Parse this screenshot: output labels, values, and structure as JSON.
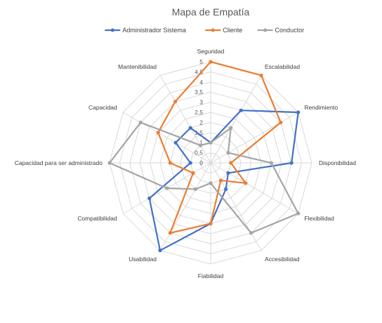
{
  "chart_data": {
    "type": "radar",
    "title": "Mapa de Empatía",
    "legend_position": "top",
    "grid": true,
    "rlim": [
      0,
      5
    ],
    "ticks": [
      "0",
      "0,5",
      "1",
      "1,5",
      "2",
      "2,5",
      "3",
      "3,5",
      "4",
      "4,5",
      "5"
    ],
    "tick_values": [
      0,
      0.5,
      1,
      1.5,
      2,
      2.5,
      3,
      3.5,
      4,
      4.5,
      5
    ],
    "categories": [
      "Seguridad",
      "Escalabilidad",
      "Rendimiento",
      "Disponibilidad",
      "Flexibilidad",
      "Accesibilidad",
      "Fiabilidad",
      "Usabilidad",
      "Compatibilidad",
      "Capacidad para ser administrado",
      "Capacidad",
      "Mantenibilidad"
    ],
    "series": [
      {
        "name": "Administrador Sistema",
        "color": "#4472c4",
        "values": [
          1,
          3,
          5,
          4,
          1,
          1.5,
          3,
          5,
          3.5,
          1,
          2,
          2
        ]
      },
      {
        "name": "Cliente",
        "color": "#ed7d31",
        "values": [
          5,
          5,
          4,
          1,
          2,
          1,
          3,
          4,
          1,
          2,
          3,
          3.5
        ]
      },
      {
        "name": "Conductor",
        "color": "#a5a5a5",
        "values": [
          1,
          2,
          1,
          3,
          5,
          4,
          1,
          1.5,
          2.5,
          5,
          4,
          1
        ]
      }
    ]
  }
}
